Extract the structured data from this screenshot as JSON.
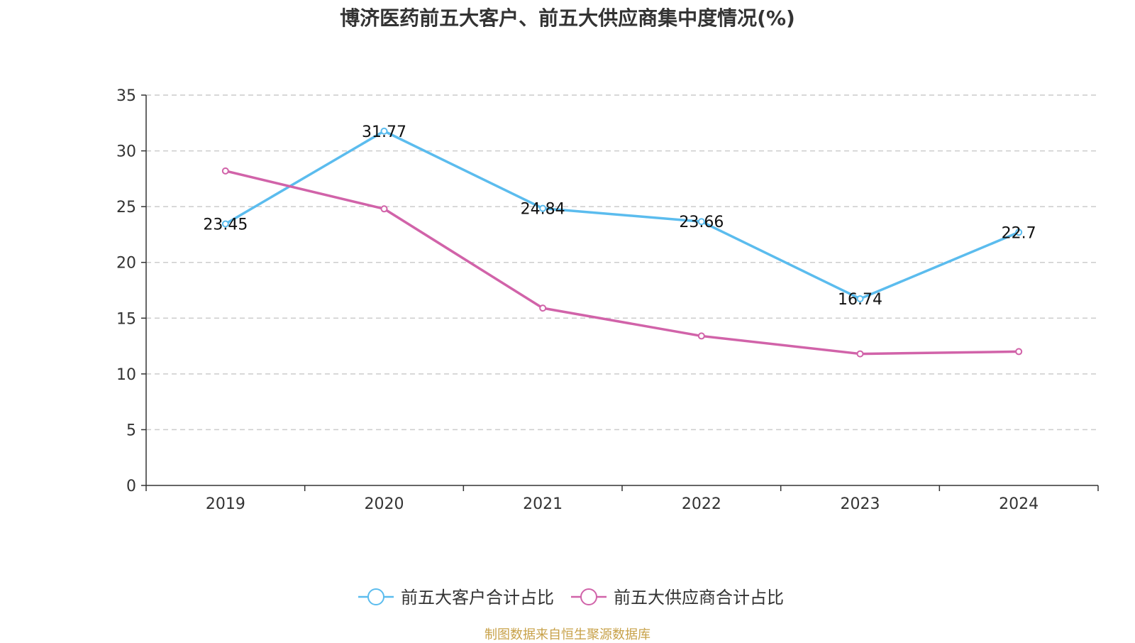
{
  "chart_data": {
    "type": "line",
    "title": "博济医药前五大客户、前五大供应商集中度情况(%)",
    "categories": [
      "2019",
      "2020",
      "2021",
      "2022",
      "2023",
      "2024"
    ],
    "ylim": [
      0,
      35
    ],
    "yticks": [
      0,
      5,
      10,
      15,
      20,
      25,
      30,
      35
    ],
    "grid": "horizontal-dashed",
    "legend_position": "bottom",
    "series": [
      {
        "name": "前五大客户合计占比",
        "color": "#5bbcee",
        "values": [
          23.45,
          31.77,
          24.84,
          23.66,
          16.74,
          22.7
        ],
        "labels": [
          "23.45",
          "31.77",
          "24.84",
          "23.66",
          "16.74",
          "22.7"
        ]
      },
      {
        "name": "前五大供应商合计占比",
        "color": "#d163a9",
        "values": [
          28.2,
          24.8,
          15.9,
          13.4,
          11.8,
          12.0
        ]
      }
    ]
  },
  "source": "制图数据来自恒生聚源数据库"
}
